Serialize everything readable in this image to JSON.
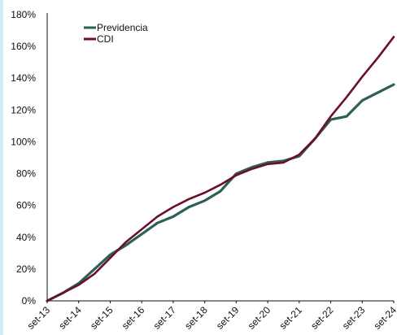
{
  "colors": {
    "side_band": "#cfeff4",
    "axis": "#111111",
    "previdencia": "#2e5e5a",
    "cdi": "#6b0f2a"
  },
  "chart_data": {
    "type": "line",
    "title": "",
    "xlabel": "",
    "ylabel": "",
    "grid": false,
    "legend_position": "top-left",
    "x_ticks": [
      "set-13",
      "set-14",
      "set-15",
      "set-16",
      "set-17",
      "set-18",
      "set-19",
      "set-20",
      "set-21",
      "set-22",
      "set-23",
      "set-24"
    ],
    "y_ticks": [
      "0%",
      "20%",
      "40%",
      "60%",
      "80%",
      "100%",
      "120%",
      "140%",
      "160%",
      "180%"
    ],
    "ylim": [
      0,
      180
    ],
    "y_unit": "%",
    "series": [
      {
        "name": "Previdencia",
        "color": "#2e5e5a",
        "x": [
          0,
          0.5,
          1,
          1.5,
          2,
          2.5,
          3,
          3.5,
          4,
          4.5,
          5,
          5.5,
          6,
          6.5,
          7,
          7.5,
          8,
          8.5,
          9,
          9.5,
          10,
          10.5,
          11
        ],
        "values": [
          0,
          5,
          11,
          20,
          29,
          35,
          42,
          49,
          53,
          59,
          63,
          69,
          80,
          84,
          87,
          88,
          91,
          102,
          114,
          116,
          126,
          131,
          136
        ]
      },
      {
        "name": "CDI",
        "color": "#6b0f2a",
        "x": [
          0,
          0.5,
          1,
          1.5,
          2,
          2.5,
          3,
          3.5,
          4,
          4.5,
          5,
          5.5,
          6,
          6.5,
          7,
          7.5,
          8,
          8.5,
          9,
          9.5,
          10,
          10.5,
          11
        ],
        "values": [
          0,
          5,
          10,
          17,
          27,
          37,
          45,
          53,
          59,
          64,
          68,
          73,
          79,
          83,
          86,
          87,
          92,
          102,
          116,
          128,
          141,
          153,
          166
        ]
      }
    ]
  }
}
